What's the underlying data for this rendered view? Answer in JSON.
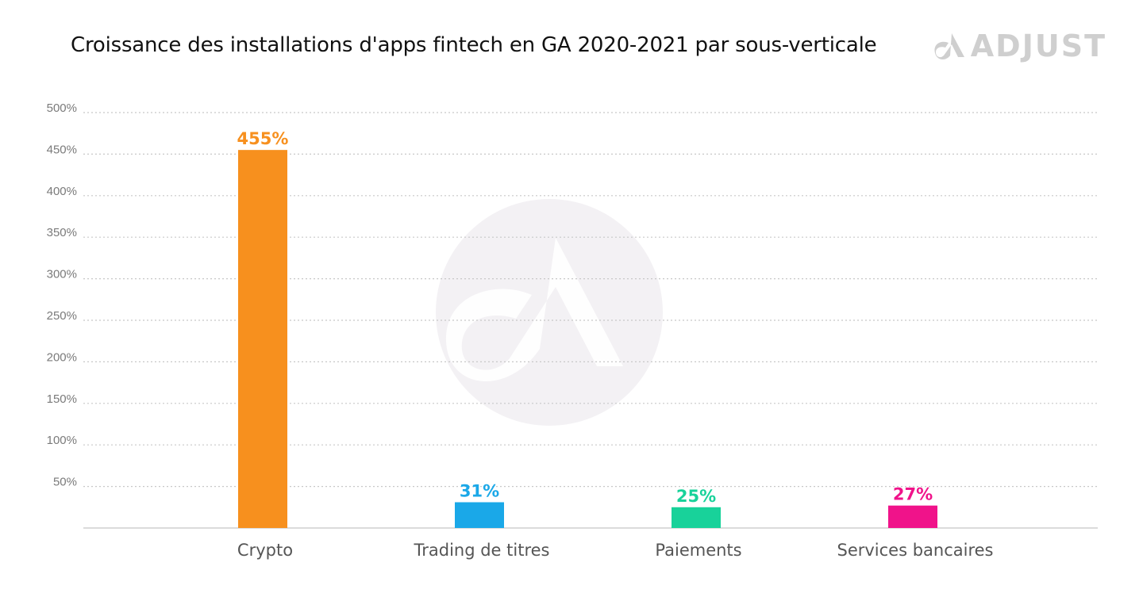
{
  "header": {
    "title": "Croissance des installations d'apps fintech en GA 2020-2021 par sous-verticale",
    "logo_text": "ADJUST"
  },
  "chart_data": {
    "type": "bar",
    "title": "Croissance des installations d'apps fintech en GA 2020-2021 par sous-verticale",
    "xlabel": "",
    "ylabel": "",
    "categories": [
      "Crypto",
      "Trading de titres",
      "Paiements",
      "Services bancaires"
    ],
    "values": [
      455,
      31,
      25,
      27
    ],
    "value_labels": [
      "455%",
      "31%",
      "25%",
      "27%"
    ],
    "colors": [
      "#f7901e",
      "#1aa8e8",
      "#18d29a",
      "#f0138a"
    ],
    "ylim": [
      0,
      500
    ],
    "yticks": [
      50,
      100,
      150,
      200,
      250,
      300,
      350,
      400,
      450,
      500
    ],
    "ytick_labels": [
      "50%",
      "100%",
      "150%",
      "200%",
      "250%",
      "300%",
      "350%",
      "400%",
      "450%",
      "500%"
    ],
    "grid": true,
    "grid_style": "dotted",
    "legend": "none",
    "watermark_icon": "adjust-logo-icon"
  }
}
